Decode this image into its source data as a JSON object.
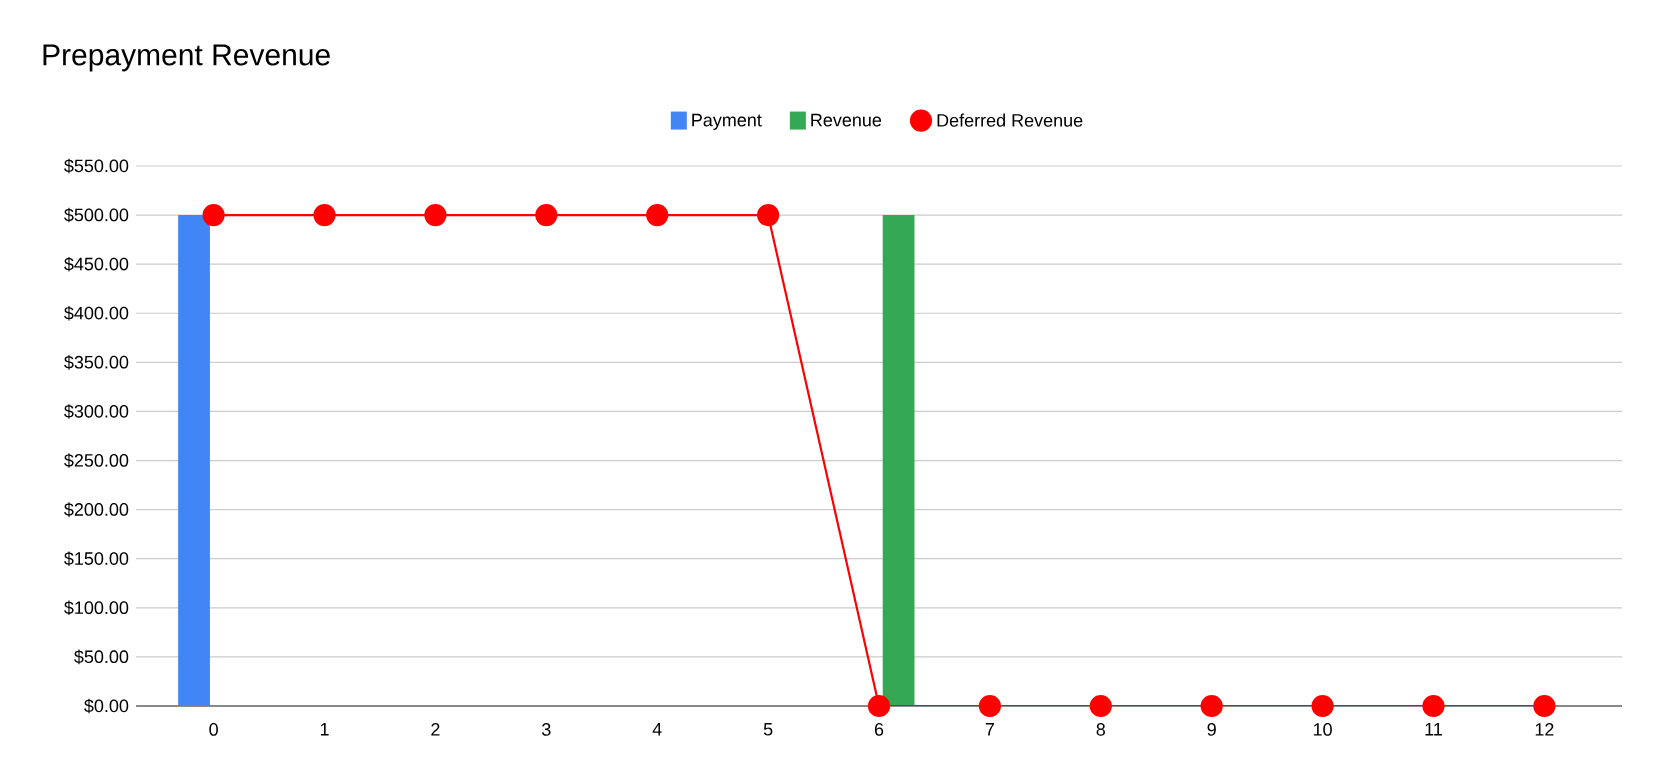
{
  "chart_data": {
    "type": "bar",
    "title": "Prepayment Revenue",
    "categories": [
      "0",
      "1",
      "2",
      "3",
      "4",
      "5",
      "6",
      "7",
      "8",
      "9",
      "10",
      "11",
      "12"
    ],
    "series": [
      {
        "name": "Payment",
        "color": "#4285f4",
        "values": [
          500,
          0,
          0,
          0,
          0,
          0,
          0,
          0,
          0,
          0,
          0,
          0,
          0
        ]
      },
      {
        "name": "Revenue",
        "color": "#34a853",
        "values": [
          0,
          0,
          0,
          0,
          0,
          0,
          500,
          0,
          0,
          0,
          0,
          0,
          0
        ]
      },
      {
        "name": "Deferred Revenue",
        "type": "line",
        "color": "#ff0000",
        "marker": "circle",
        "values": [
          500,
          500,
          500,
          500,
          500,
          500,
          0,
          0,
          0,
          0,
          0,
          0,
          0
        ]
      }
    ],
    "ylim": [
      0,
      550
    ],
    "yticks": [
      {
        "value": 0,
        "label": "$0.00"
      },
      {
        "value": 50,
        "label": "$50.00"
      },
      {
        "value": 100,
        "label": "$100.00"
      },
      {
        "value": 150,
        "label": "$150.00"
      },
      {
        "value": 200,
        "label": "$200.00"
      },
      {
        "value": 250,
        "label": "$250.00"
      },
      {
        "value": 300,
        "label": "$300.00"
      },
      {
        "value": 350,
        "label": "$350.00"
      },
      {
        "value": 400,
        "label": "$400.00"
      },
      {
        "value": 450,
        "label": "$450.00"
      },
      {
        "value": 500,
        "label": "$500.00"
      },
      {
        "value": 550,
        "label": "$550.00"
      }
    ],
    "grid": "y",
    "legend": "top"
  }
}
